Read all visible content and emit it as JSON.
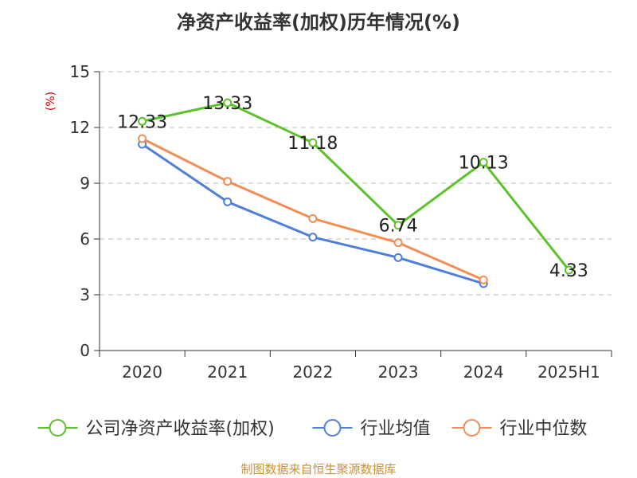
{
  "chart_data": {
    "type": "line",
    "title": "净资产收益率(加权)历年情况(%)",
    "ylabel": "(%)",
    "categories": [
      "2020",
      "2021",
      "2022",
      "2023",
      "2024",
      "2025H1"
    ],
    "ylim": [
      0,
      15
    ],
    "yticks": [
      "0",
      "3",
      "6",
      "9",
      "12",
      "15"
    ],
    "grid": true,
    "legend_position": "bottom",
    "series": [
      {
        "name": "公司净资产收益率(加权)",
        "color": "#5cc22a",
        "values": [
          12.33,
          13.33,
          11.18,
          6.74,
          10.13,
          4.33
        ],
        "labels": [
          "12.33",
          "13.33",
          "11.18",
          "6.74",
          "10.13",
          "4.33"
        ]
      },
      {
        "name": "行业均值",
        "color": "#4f7fd6",
        "values": [
          11.1,
          8.0,
          6.1,
          5.0,
          3.6,
          null
        ]
      },
      {
        "name": "行业中位数",
        "color": "#f28e55",
        "values": [
          11.4,
          9.1,
          7.1,
          5.8,
          3.8,
          null
        ]
      }
    ],
    "source": "制图数据来自恒生聚源数据库"
  }
}
